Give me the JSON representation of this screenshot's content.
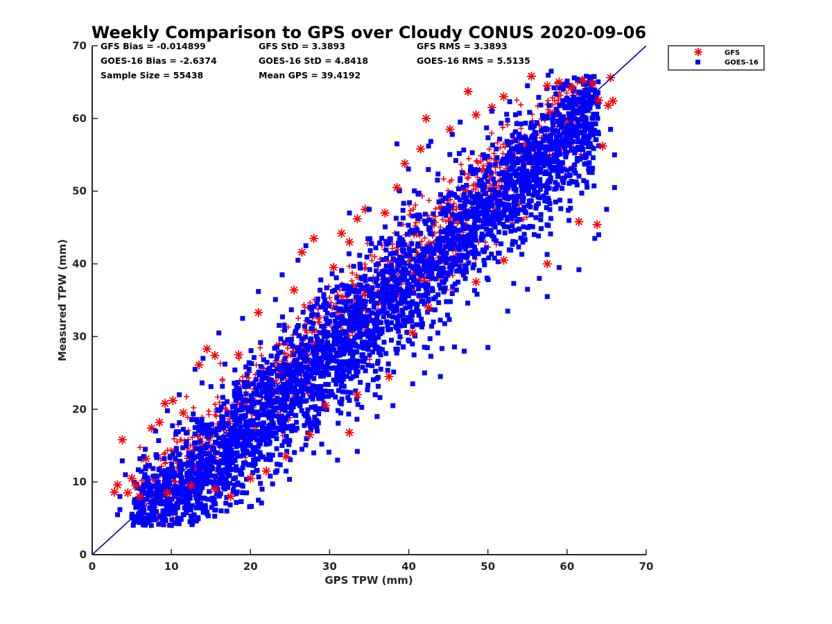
{
  "chart_data": {
    "type": "scatter",
    "title": "Weekly Comparison to GPS over Cloudy CONUS 2020-09-06",
    "xlabel": "GPS TPW (mm)",
    "ylabel": "Measured TPW (mm)",
    "xlim": [
      0,
      70
    ],
    "ylim": [
      0,
      70
    ],
    "xticks": [
      "0",
      "10",
      "20",
      "30",
      "40",
      "50",
      "60",
      "70"
    ],
    "yticks": [
      "0",
      "10",
      "20",
      "30",
      "40",
      "50",
      "60",
      "70"
    ],
    "grid": false,
    "legend": {
      "placement": "outside-top-right",
      "entries": [
        "GFS",
        "GOES-16"
      ]
    },
    "stats": [
      [
        "GFS Bias = -0.014899",
        "GFS StD = 3.3893",
        "GFS RMS = 3.3893"
      ],
      [
        "GOES-16 Bias = -2.6374",
        "GOES-16 StD = 4.8418",
        "GOES-16 RMS = 5.5135"
      ],
      [
        "Sample Size = 55438",
        "Mean GPS = 39.4192"
      ]
    ],
    "reference_line": {
      "type": "one-to-one",
      "from": [
        0,
        0
      ],
      "to": [
        70,
        70
      ],
      "color": "#0000cc"
    },
    "series": [
      {
        "name": "GFS",
        "marker": "asterisk",
        "color": "#ff0000",
        "points": [
          [
            2.8,
            8.6
          ],
          [
            3.2,
            9.6
          ],
          [
            3.8,
            15.8
          ],
          [
            4.5,
            8.5
          ],
          [
            5.5,
            9.5
          ],
          [
            6.8,
            13.2
          ],
          [
            7.5,
            17.4
          ],
          [
            8.5,
            18.2
          ],
          [
            9.2,
            20.8
          ],
          [
            10.2,
            21.2
          ],
          [
            11.5,
            19.5
          ],
          [
            13.5,
            26.1
          ],
          [
            14.5,
            28.3
          ],
          [
            15.5,
            27.4
          ],
          [
            18.5,
            27.5
          ],
          [
            21.0,
            33.3
          ],
          [
            25.5,
            36.4
          ],
          [
            26.5,
            41.6
          ],
          [
            28.0,
            43.5
          ],
          [
            30.5,
            39.5
          ],
          [
            31.5,
            44.2
          ],
          [
            32.5,
            43.0
          ],
          [
            33.5,
            46.2
          ],
          [
            34.5,
            47.5
          ],
          [
            37.0,
            47.0
          ],
          [
            38.5,
            50.5
          ],
          [
            39.5,
            53.8
          ],
          [
            41.5,
            55.8
          ],
          [
            42.2,
            60.0
          ],
          [
            45.2,
            58.5
          ],
          [
            47.5,
            63.7
          ],
          [
            48.5,
            60.5
          ],
          [
            50.5,
            61.5
          ],
          [
            52.0,
            63.0
          ],
          [
            55.5,
            65.8
          ],
          [
            57.5,
            64.5
          ],
          [
            59.0,
            65.0
          ],
          [
            60.5,
            64.2
          ],
          [
            62.0,
            65.2
          ],
          [
            63.2,
            64.8
          ],
          [
            64.0,
            62.5
          ],
          [
            65.2,
            61.8
          ],
          [
            65.8,
            62.4
          ],
          [
            65.5,
            65.6
          ],
          [
            64.5,
            56.2
          ],
          [
            63.8,
            45.4
          ],
          [
            61.5,
            45.8
          ],
          [
            57.5,
            40.0
          ],
          [
            52.0,
            40.5
          ],
          [
            48.5,
            37.5
          ],
          [
            42.5,
            34.0
          ],
          [
            40.5,
            30.5
          ],
          [
            37.5,
            24.5
          ],
          [
            33.5,
            22.0
          ],
          [
            32.5,
            16.8
          ],
          [
            29.5,
            20.5
          ],
          [
            27.5,
            16.5
          ],
          [
            24.5,
            13.5
          ],
          [
            22.0,
            11.5
          ],
          [
            20.0,
            10.5
          ],
          [
            17.5,
            8.0
          ],
          [
            15.5,
            9.0
          ],
          [
            12.5,
            9.5
          ],
          [
            9.5,
            8.5
          ],
          [
            6.0,
            8.0
          ],
          [
            5.0,
            10.5
          ]
        ]
      },
      {
        "name": "GOES-16",
        "marker": "square",
        "color": "#0000ff",
        "points": [
          [
            3.2,
            5.5
          ],
          [
            3.8,
            12.9
          ],
          [
            4.2,
            11.0
          ],
          [
            5.0,
            5.2
          ],
          [
            5.5,
            6.5
          ],
          [
            6.5,
            5.0
          ],
          [
            7.5,
            6.3
          ],
          [
            9.5,
            7.0
          ],
          [
            11.0,
            7.5
          ],
          [
            14.0,
            7.8
          ],
          [
            17.0,
            6.0
          ],
          [
            19.5,
            8.5
          ],
          [
            21.0,
            7.5
          ],
          [
            22.5,
            10.8
          ],
          [
            24.5,
            11.5
          ],
          [
            26.5,
            14.5
          ],
          [
            28.0,
            14.0
          ],
          [
            29.0,
            15.2
          ],
          [
            31.0,
            13.0
          ],
          [
            33.5,
            14.2
          ],
          [
            36.0,
            19.0
          ],
          [
            38.0,
            20.5
          ],
          [
            40.5,
            23.5
          ],
          [
            42.0,
            25.0
          ],
          [
            44.0,
            24.5
          ],
          [
            47.0,
            28.0
          ],
          [
            50.0,
            28.5
          ],
          [
            52.5,
            33.5
          ],
          [
            55.0,
            36.5
          ],
          [
            56.5,
            38.0
          ],
          [
            57.5,
            35.5
          ],
          [
            59.0,
            39.5
          ],
          [
            61.5,
            39.2
          ],
          [
            63.5,
            43.5
          ],
          [
            64.0,
            44.0
          ],
          [
            65.0,
            47.5
          ],
          [
            66.0,
            50.5
          ],
          [
            66.0,
            55.0
          ],
          [
            65.5,
            58.5
          ],
          [
            63.0,
            62.0
          ],
          [
            59.5,
            64.0
          ],
          [
            58.0,
            66.5
          ],
          [
            55.0,
            64.5
          ],
          [
            50.5,
            61.0
          ],
          [
            46.5,
            59.5
          ],
          [
            45.5,
            57.8
          ],
          [
            42.5,
            56.2
          ],
          [
            38.5,
            56.5
          ],
          [
            35.0,
            47.5
          ],
          [
            32.5,
            47.0
          ],
          [
            27.0,
            42.5
          ],
          [
            26.0,
            40.5
          ],
          [
            24.0,
            38.5
          ],
          [
            21.0,
            36.2
          ],
          [
            19.0,
            32.5
          ],
          [
            16.0,
            30.5
          ],
          [
            14.0,
            27.0
          ],
          [
            13.0,
            25.5
          ],
          [
            11.0,
            22.0
          ],
          [
            9.5,
            19.8
          ],
          [
            8.0,
            17.0
          ],
          [
            6.5,
            13.5
          ],
          [
            3.5,
            8.0
          ],
          [
            3.5,
            6.2
          ]
        ]
      }
    ]
  }
}
